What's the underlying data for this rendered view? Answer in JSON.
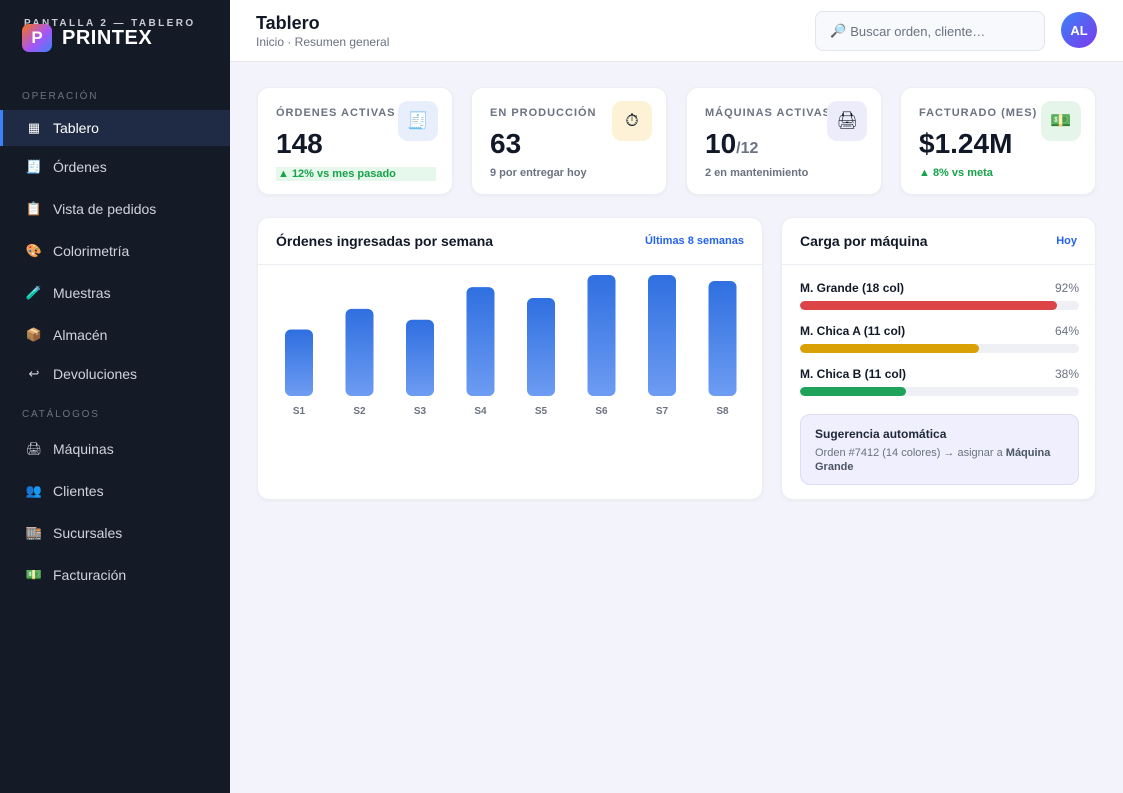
{
  "app": {
    "screen_label": "PANTALLA 2 — TABLERO",
    "brand_initial": "P",
    "brand_name": "PRINTEX"
  },
  "sidebar": {
    "section_operacion": "OPERACIÓN",
    "section_catalogos": "CATÁLOGOS",
    "items": [
      {
        "label": "Tablero",
        "icon": "▦",
        "icon_name": "grid-icon",
        "active": true
      },
      {
        "label": "Órdenes",
        "icon": "🧾",
        "icon_name": "receipt-icon"
      },
      {
        "label": "Vista de pedidos",
        "icon": "📋",
        "icon_name": "clipboard-icon"
      },
      {
        "label": "Colorimetría",
        "icon": "🎨",
        "icon_name": "palette-icon"
      },
      {
        "label": "Muestras",
        "icon": "🧪",
        "icon_name": "test-tube-icon"
      },
      {
        "label": "Almacén",
        "icon": "📦",
        "icon_name": "package-icon"
      },
      {
        "label": "Devoluciones",
        "icon": "↩",
        "icon_name": "return-icon"
      },
      {
        "label": "Máquinas",
        "icon": "🖨",
        "icon_name": "printer-icon"
      },
      {
        "label": "Clientes",
        "icon": "👥",
        "icon_name": "users-icon"
      },
      {
        "label": "Sucursales",
        "icon": "🏬",
        "icon_name": "store-icon"
      },
      {
        "label": "Facturación",
        "icon": "💵",
        "icon_name": "money-icon"
      }
    ]
  },
  "header": {
    "title": "Tablero",
    "breadcrumb": "Inicio · Resumen general",
    "search_icon": "🔎",
    "search_placeholder": "Buscar orden, cliente…",
    "avatar_initials": "AL"
  },
  "kpis": [
    {
      "label": "ÓRDENES ACTIVAS",
      "value": "148",
      "value_sub": "",
      "note": "▲ 12% vs mes pasado",
      "note_style": "up-badge",
      "icon": "🧾",
      "icon_name": "receipt-icon",
      "icon_bg": "#e8eefc"
    },
    {
      "label": "EN PRODUCCIÓN",
      "value": "63",
      "value_sub": "",
      "note": "9 por entregar hoy",
      "note_style": "muted",
      "icon": "⏱",
      "icon_name": "stopwatch-icon",
      "icon_bg": "#fdf2d6"
    },
    {
      "label": "MÁQUINAS ACTIVAS",
      "value": "10",
      "value_sub": "/12",
      "note": "2 en mantenimiento",
      "note_style": "muted",
      "icon": "🖨",
      "icon_name": "printer-icon",
      "icon_bg": "#ececfb"
    },
    {
      "label": "FACTURADO (MES)",
      "value": "$1.24M",
      "value_sub": "",
      "note": "▲ 8% vs meta",
      "note_style": "up",
      "icon": "💵",
      "icon_name": "money-icon",
      "icon_bg": "#e5f5ea"
    }
  ],
  "orders_panel": {
    "title": "Órdenes ingresadas por semana",
    "link": "Últimas 8 semanas"
  },
  "chart_data": {
    "type": "bar",
    "categories": [
      "S1",
      "S2",
      "S3",
      "S4",
      "S5",
      "S6",
      "S7",
      "S8"
    ],
    "values": [
      55,
      72,
      63,
      90,
      81,
      100,
      100,
      95
    ],
    "ylim": [
      0,
      100
    ],
    "grid": false,
    "colors": {
      "top": "#2f6fe0",
      "bottom": "#6d9cf2"
    }
  },
  "machine_panel": {
    "title": "Carga por máquina",
    "link": "Hoy",
    "machines": [
      {
        "name": "M. Grande (18 col)",
        "percent": 92,
        "percent_label": "92%",
        "color": "#dc4446"
      },
      {
        "name": "M. Chica A (11 col)",
        "percent": 64,
        "percent_label": "64%",
        "color": "#d9a106"
      },
      {
        "name": "M. Chica B (11 col)",
        "percent": 38,
        "percent_label": "38%",
        "color": "#1fa35a"
      }
    ],
    "suggestion": {
      "title": "Sugerencia automática",
      "text": "Orden #7412 (14 colores) → asignar a",
      "target": "Máquina Grande"
    }
  }
}
